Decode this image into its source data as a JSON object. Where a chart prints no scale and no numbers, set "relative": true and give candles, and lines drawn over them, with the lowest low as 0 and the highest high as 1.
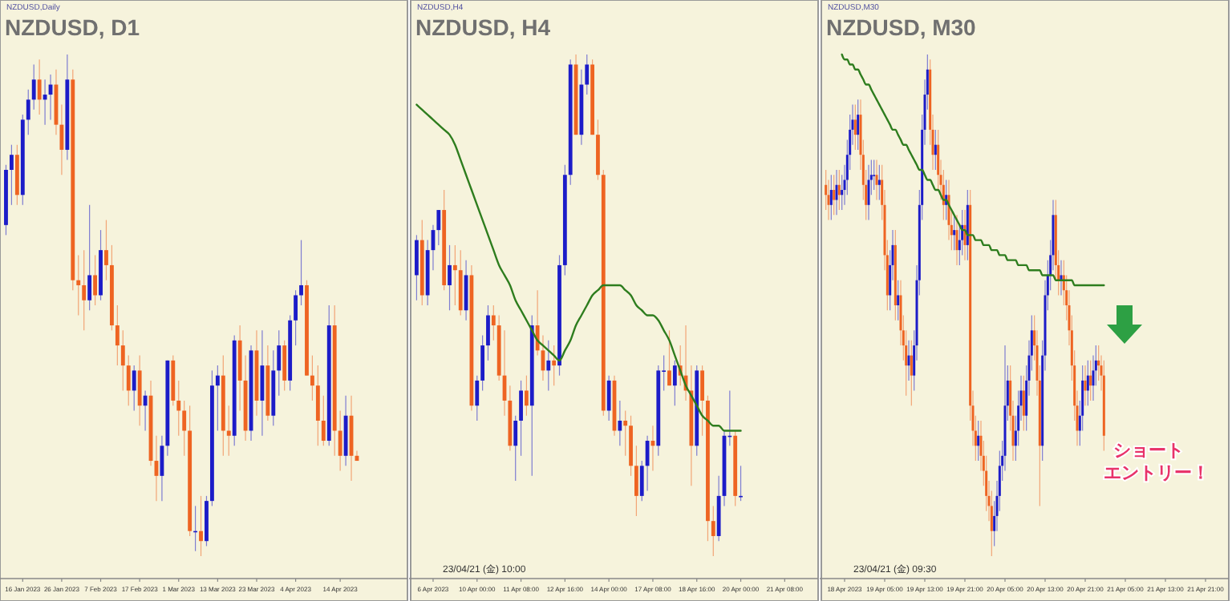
{
  "chart_data": [
    {
      "type": "candlestick",
      "title": "NZDUSD, D1",
      "subtitle": "NZDUSD,Daily",
      "relative": true,
      "categories": [
        null,
        null,
        null,
        "16 Jan 2023",
        null,
        null,
        null,
        null,
        null,
        null,
        "26 Jan 2023",
        null,
        null,
        null,
        null,
        null,
        null,
        "7 Feb 2023",
        null,
        null,
        null,
        null,
        null,
        null,
        "17 Feb 2023",
        null,
        null,
        null,
        null,
        null,
        null,
        "1 Mar 2023",
        null,
        null,
        null,
        null,
        null,
        null,
        "13 Mar 2023",
        null,
        null,
        null,
        null,
        null,
        null,
        "23 Mar 2023",
        null,
        null,
        null,
        null,
        null,
        null,
        "4 Apr 2023",
        null,
        null,
        null,
        null,
        null,
        null,
        null,
        "14 Apr 2023",
        null,
        null,
        null,
        null,
        null,
        null,
        null,
        null,
        null,
        null,
        null
      ],
      "ohlc": [
        [
          0.66,
          0.78,
          0.64,
          0.77
        ],
        [
          0.77,
          0.82,
          0.7,
          0.8
        ],
        [
          0.8,
          0.82,
          0.7,
          0.72
        ],
        [
          0.72,
          0.88,
          0.7,
          0.87
        ],
        [
          0.87,
          0.93,
          0.84,
          0.91
        ],
        [
          0.91,
          0.98,
          0.89,
          0.95
        ],
        [
          0.95,
          0.99,
          0.88,
          0.91
        ],
        [
          0.91,
          0.95,
          0.86,
          0.92
        ],
        [
          0.92,
          0.96,
          0.87,
          0.94
        ],
        [
          0.94,
          0.97,
          0.84,
          0.86
        ],
        [
          0.86,
          0.9,
          0.76,
          0.81
        ],
        [
          0.81,
          1.0,
          0.79,
          0.95
        ],
        [
          0.95,
          0.97,
          0.53,
          0.55
        ],
        [
          0.55,
          0.6,
          0.48,
          0.54
        ],
        [
          0.54,
          0.61,
          0.45,
          0.51
        ],
        [
          0.51,
          0.7,
          0.49,
          0.56
        ],
        [
          0.56,
          0.6,
          0.5,
          0.52
        ],
        [
          0.52,
          0.65,
          0.51,
          0.61
        ],
        [
          0.61,
          0.67,
          0.55,
          0.58
        ],
        [
          0.58,
          0.62,
          0.45,
          0.46
        ],
        [
          0.46,
          0.5,
          0.38,
          0.42
        ],
        [
          0.42,
          0.45,
          0.33,
          0.38
        ],
        [
          0.38,
          0.4,
          0.3,
          0.33
        ],
        [
          0.33,
          0.38,
          0.29,
          0.37
        ],
        [
          0.37,
          0.4,
          0.26,
          0.3
        ],
        [
          0.3,
          0.33,
          0.25,
          0.32
        ],
        [
          0.32,
          0.35,
          0.18,
          0.19
        ],
        [
          0.19,
          0.24,
          0.11,
          0.16
        ],
        [
          0.16,
          0.24,
          0.11,
          0.22
        ],
        [
          0.22,
          0.39,
          0.2,
          0.39
        ],
        [
          0.39,
          0.4,
          0.3,
          0.31
        ],
        [
          0.31,
          0.35,
          0.24,
          0.29
        ],
        [
          0.29,
          0.31,
          0.2,
          0.25
        ],
        [
          0.25,
          0.3,
          0.04,
          0.05
        ],
        [
          0.05,
          0.1,
          0.01,
          0.05
        ],
        [
          0.05,
          0.12,
          0.0,
          0.03
        ],
        [
          0.03,
          0.12,
          0.02,
          0.11
        ],
        [
          0.11,
          0.37,
          0.1,
          0.34
        ],
        [
          0.34,
          0.38,
          0.25,
          0.36
        ],
        [
          0.36,
          0.4,
          0.2,
          0.25
        ],
        [
          0.25,
          0.3,
          0.2,
          0.24
        ],
        [
          0.24,
          0.44,
          0.22,
          0.43
        ],
        [
          0.43,
          0.46,
          0.29,
          0.35
        ],
        [
          0.35,
          0.4,
          0.23,
          0.25
        ],
        [
          0.25,
          0.42,
          0.23,
          0.41
        ],
        [
          0.41,
          0.45,
          0.28,
          0.31
        ],
        [
          0.31,
          0.45,
          0.24,
          0.38
        ],
        [
          0.38,
          0.42,
          0.27,
          0.28
        ],
        [
          0.28,
          0.41,
          0.26,
          0.37
        ],
        [
          0.37,
          0.45,
          0.32,
          0.42
        ],
        [
          0.42,
          0.43,
          0.33,
          0.35
        ],
        [
          0.35,
          0.48,
          0.33,
          0.47
        ],
        [
          0.47,
          0.53,
          0.42,
          0.52
        ],
        [
          0.52,
          0.63,
          0.5,
          0.54
        ],
        [
          0.54,
          0.55,
          0.36,
          0.36
        ],
        [
          0.36,
          0.4,
          0.31,
          0.34
        ],
        [
          0.34,
          0.38,
          0.22,
          0.27
        ],
        [
          0.27,
          0.32,
          0.22,
          0.23
        ],
        [
          0.23,
          0.5,
          0.22,
          0.46
        ],
        [
          0.46,
          0.5,
          0.2,
          0.25
        ],
        [
          0.25,
          0.29,
          0.17,
          0.2
        ],
        [
          0.2,
          0.32,
          0.18,
          0.28
        ],
        [
          0.28,
          0.32,
          0.15,
          0.2
        ],
        [
          0.2,
          0.21,
          0.19,
          0.19
        ],
        null,
        null,
        null,
        null,
        null,
        null,
        null,
        null
      ]
    },
    {
      "type": "candlestick",
      "title": "NZDUSD, H4",
      "subtitle": "NZDUSD,H4",
      "relative": true,
      "categories": [
        null,
        null,
        null,
        "6 Apr 2023",
        null,
        null,
        null,
        null,
        null,
        null,
        null,
        "10 Apr 00:00",
        null,
        null,
        null,
        null,
        null,
        null,
        null,
        "11 Apr 08:00",
        null,
        null,
        null,
        null,
        null,
        null,
        null,
        "12 Apr 16:00",
        null,
        null,
        null,
        null,
        null,
        null,
        null,
        "14 Apr 00:00",
        null,
        null,
        null,
        null,
        null,
        null,
        null,
        "17 Apr 08:00",
        null,
        null,
        null,
        null,
        null,
        null,
        null,
        "18 Apr 16:00",
        null,
        null,
        null,
        null,
        null,
        null,
        null,
        "20 Apr 00:00",
        null,
        null,
        null,
        null,
        null,
        null,
        null,
        "21 Apr 08:00",
        null,
        null,
        null,
        null,
        null
      ],
      "ohlc": [
        [
          0.56,
          0.64,
          0.51,
          0.63
        ],
        [
          0.63,
          0.67,
          0.5,
          0.52
        ],
        [
          0.52,
          0.63,
          0.5,
          0.61
        ],
        [
          0.61,
          0.66,
          0.57,
          0.65
        ],
        [
          0.65,
          0.69,
          0.62,
          0.69
        ],
        [
          0.69,
          0.73,
          0.53,
          0.54
        ],
        [
          0.54,
          0.62,
          0.49,
          0.58
        ],
        [
          0.58,
          0.62,
          0.5,
          0.57
        ],
        [
          0.57,
          0.61,
          0.48,
          0.49
        ],
        [
          0.49,
          0.59,
          0.47,
          0.56
        ],
        [
          0.56,
          0.58,
          0.29,
          0.3
        ],
        [
          0.3,
          0.36,
          0.27,
          0.35
        ],
        [
          0.35,
          0.44,
          0.33,
          0.42
        ],
        [
          0.42,
          0.5,
          0.39,
          0.48
        ],
        [
          0.48,
          0.5,
          0.43,
          0.46
        ],
        [
          0.46,
          0.48,
          0.35,
          0.36
        ],
        [
          0.36,
          0.45,
          0.28,
          0.31
        ],
        [
          0.31,
          0.34,
          0.21,
          0.22
        ],
        [
          0.22,
          0.28,
          0.15,
          0.27
        ],
        [
          0.27,
          0.35,
          0.2,
          0.33
        ],
        [
          0.33,
          0.36,
          0.28,
          0.3
        ],
        [
          0.3,
          0.48,
          0.16,
          0.46
        ],
        [
          0.46,
          0.53,
          0.4,
          0.41
        ],
        [
          0.41,
          0.44,
          0.35,
          0.37
        ],
        [
          0.37,
          0.43,
          0.33,
          0.39
        ],
        [
          0.39,
          0.42,
          0.34,
          0.38
        ],
        [
          0.38,
          0.6,
          0.36,
          0.58
        ],
        [
          0.58,
          0.78,
          0.56,
          0.76
        ],
        [
          0.76,
          0.99,
          0.74,
          0.98
        ],
        [
          0.98,
          1.0,
          0.84,
          0.84
        ],
        [
          0.84,
          0.97,
          0.82,
          0.94
        ],
        [
          0.94,
          1.0,
          0.92,
          0.98
        ],
        [
          0.98,
          0.99,
          0.84,
          0.84
        ],
        [
          0.84,
          0.87,
          0.75,
          0.76
        ],
        [
          0.76,
          0.77,
          0.28,
          0.29
        ],
        [
          0.29,
          0.36,
          0.27,
          0.35
        ],
        [
          0.35,
          0.36,
          0.24,
          0.25
        ],
        [
          0.25,
          0.31,
          0.22,
          0.27
        ],
        [
          0.27,
          0.29,
          0.2,
          0.26
        ],
        [
          0.26,
          0.28,
          0.16,
          0.18
        ],
        [
          0.18,
          0.22,
          0.08,
          0.12
        ],
        [
          0.12,
          0.19,
          0.11,
          0.18
        ],
        [
          0.18,
          0.24,
          0.13,
          0.23
        ],
        [
          0.23,
          0.26,
          0.17,
          0.22
        ],
        [
          0.22,
          0.38,
          0.2,
          0.37
        ],
        [
          0.37,
          0.4,
          0.33,
          0.37
        ],
        [
          0.37,
          0.45,
          0.34,
          0.34
        ],
        [
          0.34,
          0.39,
          0.3,
          0.38
        ],
        [
          0.38,
          0.42,
          0.34,
          0.36
        ],
        [
          0.36,
          0.46,
          0.31,
          0.33
        ],
        [
          0.33,
          0.38,
          0.14,
          0.22
        ],
        [
          0.22,
          0.38,
          0.2,
          0.37
        ],
        [
          0.37,
          0.38,
          0.24,
          0.31
        ],
        [
          0.31,
          0.32,
          0.03,
          0.07
        ],
        [
          0.07,
          0.1,
          0.0,
          0.04
        ],
        [
          0.04,
          0.16,
          0.03,
          0.12
        ],
        [
          0.12,
          0.25,
          0.1,
          0.24
        ],
        [
          0.24,
          0.33,
          0.22,
          0.24
        ],
        [
          0.24,
          0.25,
          0.1,
          0.12
        ],
        [
          0.12,
          0.18,
          0.11,
          0.12
        ],
        null,
        null,
        null,
        null,
        null,
        null,
        null,
        null,
        null,
        null,
        null,
        null,
        null
      ],
      "series": [
        {
          "type": "line",
          "color": "#2e7d1e",
          "values": [
            0.9,
            0.89,
            0.88,
            0.87,
            0.86,
            0.85,
            0.84,
            0.82,
            0.79,
            0.76,
            0.73,
            0.7,
            0.67,
            0.64,
            0.61,
            0.58,
            0.56,
            0.54,
            0.51,
            0.49,
            0.47,
            0.45,
            0.43,
            0.42,
            0.41,
            0.4,
            0.39,
            0.41,
            0.43,
            0.46,
            0.48,
            0.5,
            0.52,
            0.53,
            0.54,
            0.54,
            0.54,
            0.54,
            0.53,
            0.52,
            0.5,
            0.49,
            0.48,
            0.48,
            0.47,
            0.45,
            0.43,
            0.4,
            0.37,
            0.34,
            0.32,
            0.3,
            0.28,
            0.27,
            0.26,
            0.26,
            0.25,
            0.25,
            0.25,
            0.25,
            null,
            null,
            null,
            null,
            null,
            null,
            null,
            null,
            null,
            null,
            null,
            null,
            null
          ]
        }
      ],
      "annotations": [
        "23/04/21 (金) 10:00"
      ]
    },
    {
      "type": "candlestick",
      "title": "NZDUSD, M30",
      "subtitle": "NZDUSD,M30",
      "relative": true,
      "categories": [
        null,
        null,
        null,
        null,
        null,
        null,
        null,
        "18 Apr 2023",
        null,
        null,
        null,
        null,
        null,
        null,
        null,
        null,
        null,
        null,
        null,
        null,
        null,
        null,
        "19 Apr 05:00",
        null,
        null,
        null,
        null,
        null,
        null,
        null,
        null,
        null,
        null,
        null,
        null,
        null,
        null,
        "19 Apr 13:00",
        null,
        null,
        null,
        null,
        null,
        null,
        null,
        null,
        null,
        null,
        null,
        null,
        null,
        null,
        "19 Apr 21:00",
        null,
        null,
        null,
        null,
        null,
        null,
        null,
        null,
        null,
        null,
        null,
        null,
        null,
        null,
        "20 Apr 05:00",
        null,
        null,
        null,
        null,
        null,
        null,
        null,
        null,
        null,
        null,
        null,
        null,
        null,
        null,
        "20 Apr 13:00",
        null,
        null,
        null,
        null,
        null,
        null,
        null,
        null,
        null,
        null,
        null,
        null,
        null,
        null,
        "20 Apr 21:00",
        null,
        null,
        null,
        null,
        null,
        null,
        null,
        null,
        null,
        null,
        null,
        null,
        null,
        null,
        "21 Apr 05:00",
        null,
        null,
        null,
        null,
        null,
        null,
        null,
        null,
        null,
        null,
        null,
        null,
        null,
        null,
        "21 Apr 13:00",
        null,
        null,
        null,
        null,
        null,
        null,
        null,
        null,
        null,
        null,
        null,
        null,
        null,
        null,
        "21 Apr 21:00",
        null,
        null,
        null,
        null,
        null,
        null,
        null
      ],
      "ohlc": [
        [
          0.74,
          0.77,
          0.69,
          0.72
        ],
        [
          0.72,
          0.75,
          0.67,
          0.7
        ],
        [
          0.7,
          0.76,
          0.67,
          0.73
        ],
        [
          0.73,
          0.76,
          0.68,
          0.71
        ],
        [
          0.71,
          0.77,
          0.68,
          0.74
        ],
        [
          0.74,
          0.77,
          0.69,
          0.72
        ],
        [
          0.72,
          0.76,
          0.69,
          0.73
        ],
        [
          0.73,
          0.78,
          0.7,
          0.75
        ],
        [
          0.75,
          0.83,
          0.72,
          0.8
        ],
        [
          0.8,
          0.88,
          0.77,
          0.85
        ],
        [
          0.85,
          0.9,
          0.82,
          0.87
        ],
        [
          0.87,
          0.9,
          0.81,
          0.84
        ],
        [
          0.84,
          0.91,
          0.81,
          0.88
        ],
        [
          0.88,
          0.91,
          0.77,
          0.8
        ],
        [
          0.8,
          0.83,
          0.71,
          0.74
        ],
        [
          0.74,
          0.77,
          0.67,
          0.7
        ],
        [
          0.7,
          0.78,
          0.67,
          0.75
        ],
        [
          0.75,
          0.79,
          0.72,
          0.76
        ],
        [
          0.76,
          0.79,
          0.73,
          0.76
        ],
        [
          0.76,
          0.79,
          0.71,
          0.74
        ],
        [
          0.74,
          0.78,
          0.71,
          0.75
        ],
        [
          0.75,
          0.78,
          0.67,
          0.7
        ],
        [
          0.7,
          0.73,
          0.57,
          0.6
        ],
        [
          0.6,
          0.63,
          0.49,
          0.52
        ],
        [
          0.52,
          0.61,
          0.49,
          0.58
        ],
        [
          0.58,
          0.65,
          0.55,
          0.62
        ],
        [
          0.62,
          0.65,
          0.47,
          0.5
        ],
        [
          0.5,
          0.55,
          0.47,
          0.52
        ],
        [
          0.52,
          0.55,
          0.42,
          0.45
        ],
        [
          0.45,
          0.48,
          0.39,
          0.42
        ],
        [
          0.42,
          0.45,
          0.32,
          0.38
        ],
        [
          0.38,
          0.43,
          0.35,
          0.4
        ],
        [
          0.4,
          0.43,
          0.3,
          0.36
        ],
        [
          0.36,
          0.45,
          0.33,
          0.42
        ],
        [
          0.42,
          0.58,
          0.39,
          0.55
        ],
        [
          0.55,
          0.73,
          0.52,
          0.7
        ],
        [
          0.7,
          0.88,
          0.67,
          0.85
        ],
        [
          0.85,
          0.95,
          0.82,
          0.92
        ],
        [
          0.92,
          1.0,
          0.89,
          0.97
        ],
        [
          0.97,
          0.99,
          0.82,
          0.85
        ],
        [
          0.85,
          0.88,
          0.77,
          0.8
        ],
        [
          0.8,
          0.85,
          0.77,
          0.82
        ],
        [
          0.82,
          0.85,
          0.73,
          0.76
        ],
        [
          0.76,
          0.79,
          0.71,
          0.74
        ],
        [
          0.74,
          0.77,
          0.67,
          0.7
        ],
        [
          0.7,
          0.75,
          0.67,
          0.72
        ],
        [
          0.72,
          0.75,
          0.63,
          0.66
        ],
        [
          0.66,
          0.69,
          0.61,
          0.64
        ],
        [
          0.64,
          0.68,
          0.61,
          0.65
        ],
        [
          0.65,
          0.68,
          0.58,
          0.61
        ],
        [
          0.61,
          0.66,
          0.58,
          0.63
        ],
        [
          0.63,
          0.69,
          0.6,
          0.66
        ],
        [
          0.66,
          0.69,
          0.59,
          0.62
        ],
        [
          0.62,
          0.73,
          0.59,
          0.7
        ],
        [
          0.7,
          0.73,
          0.27,
          0.3
        ],
        [
          0.3,
          0.33,
          0.22,
          0.25
        ],
        [
          0.25,
          0.28,
          0.19,
          0.22
        ],
        [
          0.22,
          0.27,
          0.19,
          0.24
        ],
        [
          0.24,
          0.27,
          0.17,
          0.2
        ],
        [
          0.2,
          0.23,
          0.14,
          0.17
        ],
        [
          0.17,
          0.2,
          0.09,
          0.12
        ],
        [
          0.12,
          0.15,
          0.07,
          0.1
        ],
        [
          0.1,
          0.13,
          0.0,
          0.05
        ],
        [
          0.05,
          0.11,
          0.02,
          0.08
        ],
        [
          0.08,
          0.15,
          0.05,
          0.12
        ],
        [
          0.12,
          0.21,
          0.09,
          0.18
        ],
        [
          0.18,
          0.23,
          0.15,
          0.2
        ],
        [
          0.2,
          0.42,
          0.17,
          0.3
        ],
        [
          0.3,
          0.38,
          0.27,
          0.35
        ],
        [
          0.35,
          0.38,
          0.25,
          0.28
        ],
        [
          0.28,
          0.31,
          0.19,
          0.22
        ],
        [
          0.22,
          0.28,
          0.19,
          0.25
        ],
        [
          0.25,
          0.33,
          0.22,
          0.3
        ],
        [
          0.3,
          0.36,
          0.27,
          0.33
        ],
        [
          0.33,
          0.36,
          0.25,
          0.28
        ],
        [
          0.28,
          0.38,
          0.25,
          0.35
        ],
        [
          0.35,
          0.43,
          0.32,
          0.4
        ],
        [
          0.4,
          0.48,
          0.37,
          0.45
        ],
        [
          0.45,
          0.48,
          0.39,
          0.42
        ],
        [
          0.42,
          0.45,
          0.32,
          0.35
        ],
        [
          0.35,
          0.38,
          0.1,
          0.22
        ],
        [
          0.22,
          0.43,
          0.19,
          0.4
        ],
        [
          0.4,
          0.55,
          0.37,
          0.52
        ],
        [
          0.52,
          0.59,
          0.49,
          0.56
        ],
        [
          0.56,
          0.63,
          0.53,
          0.6
        ],
        [
          0.6,
          0.71,
          0.57,
          0.68
        ],
        [
          0.68,
          0.71,
          0.55,
          0.58
        ],
        [
          0.58,
          0.61,
          0.52,
          0.55
        ],
        [
          0.55,
          0.59,
          0.52,
          0.56
        ],
        [
          0.56,
          0.59,
          0.5,
          0.53
        ],
        [
          0.53,
          0.56,
          0.47,
          0.5
        ],
        [
          0.5,
          0.53,
          0.42,
          0.45
        ],
        [
          0.45,
          0.48,
          0.35,
          0.38
        ],
        [
          0.38,
          0.41,
          0.27,
          0.3
        ],
        [
          0.3,
          0.33,
          0.22,
          0.25
        ],
        [
          0.25,
          0.31,
          0.22,
          0.28
        ],
        [
          0.28,
          0.38,
          0.25,
          0.35
        ],
        [
          0.35,
          0.38,
          0.3,
          0.33
        ],
        [
          0.33,
          0.39,
          0.3,
          0.36
        ],
        [
          0.36,
          0.39,
          0.31,
          0.34
        ],
        [
          0.34,
          0.4,
          0.31,
          0.37
        ],
        [
          0.37,
          0.42,
          0.34,
          0.39
        ],
        [
          0.39,
          0.42,
          0.35,
          0.38
        ],
        [
          0.38,
          0.4,
          0.33,
          0.36
        ],
        [
          0.36,
          0.39,
          0.21,
          0.24
        ],
        null,
        null,
        null,
        null,
        null,
        null,
        null,
        null,
        null,
        null,
        null,
        null,
        null,
        null,
        null,
        null,
        null,
        null,
        null,
        null,
        null,
        null,
        null,
        null,
        null,
        null,
        null,
        null,
        null,
        null,
        null,
        null,
        null,
        null,
        null,
        null,
        null,
        null,
        null,
        null,
        null,
        null,
        null,
        null,
        null
      ],
      "series": [
        {
          "type": "line",
          "color": "#2e7d1e",
          "values": [
            null,
            null,
            null,
            null,
            null,
            null,
            1.0,
            0.99,
            0.99,
            0.98,
            0.98,
            0.97,
            0.97,
            0.96,
            0.95,
            0.94,
            0.94,
            0.93,
            0.92,
            0.91,
            0.9,
            0.89,
            0.88,
            0.87,
            0.86,
            0.85,
            0.85,
            0.84,
            0.83,
            0.82,
            0.82,
            0.81,
            0.8,
            0.79,
            0.78,
            0.77,
            0.77,
            0.76,
            0.75,
            0.75,
            0.74,
            0.73,
            0.73,
            0.72,
            0.71,
            0.71,
            0.7,
            0.69,
            0.68,
            0.67,
            0.66,
            0.65,
            0.65,
            0.64,
            0.64,
            0.64,
            0.63,
            0.63,
            0.63,
            0.62,
            0.62,
            0.62,
            0.61,
            0.61,
            0.61,
            0.6,
            0.6,
            0.6,
            0.59,
            0.59,
            0.59,
            0.59,
            0.58,
            0.58,
            0.58,
            0.58,
            0.57,
            0.57,
            0.57,
            0.57,
            0.57,
            0.56,
            0.56,
            0.56,
            0.56,
            0.56,
            0.55,
            0.55,
            0.55,
            0.55,
            0.55,
            0.55,
            0.55,
            0.54,
            0.54,
            0.54,
            0.54,
            0.54,
            0.54,
            0.54,
            0.54,
            0.54,
            0.54,
            0.54,
            0.54,
            null,
            null,
            null,
            null,
            null,
            null,
            null,
            null,
            null,
            null,
            null,
            null,
            null,
            null,
            null,
            null,
            null,
            null,
            null,
            null,
            null,
            null,
            null,
            null,
            null,
            null,
            null,
            null,
            null,
            null,
            null,
            null,
            null,
            null,
            null,
            null,
            null,
            null,
            null,
            null,
            null,
            null,
            null,
            null,
            null
          ]
        }
      ],
      "annotations": [
        "23/04/21 (金) 09:30",
        "ショート",
        "エントリー！"
      ]
    }
  ]
}
